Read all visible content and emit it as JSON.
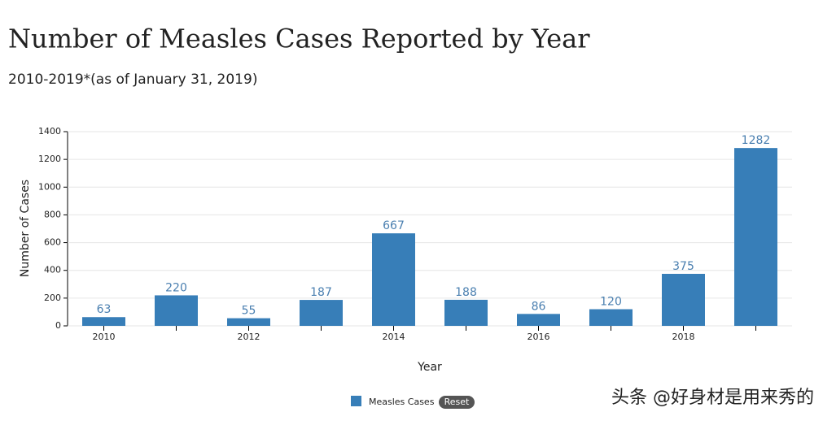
{
  "chart_data": {
    "type": "bar",
    "title": "Number of Measles Cases Reported by Year",
    "subtitle": "2010-2019*(as of January 31, 2019)",
    "x_label": "Year",
    "y_label": "Number of Cases",
    "categories": [
      2010,
      null,
      2012,
      null,
      2014,
      null,
      2016,
      null,
      2018,
      null
    ],
    "series": [
      {
        "name": "Measles Cases",
        "color": "#377eb8",
        "values": [
          63,
          220,
          55,
          187,
          667,
          188,
          86,
          120,
          375,
          1282
        ]
      }
    ],
    "ylim": [
      0,
      1400
    ],
    "yticks": [
      0,
      200,
      400,
      600,
      800,
      1000,
      1200,
      1400
    ],
    "grid": true,
    "button": "Reset",
    "watermark": "头条 @好身材是用来秀的"
  }
}
